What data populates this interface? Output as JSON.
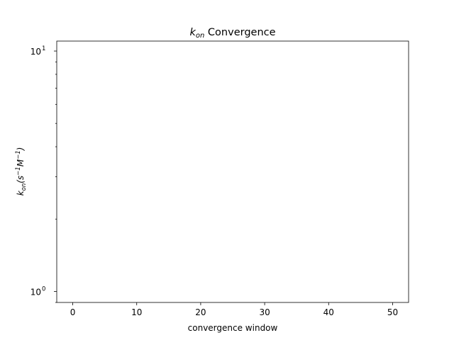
{
  "chart_data": {
    "type": "line",
    "title": {
      "k": "k",
      "sub": "on",
      "rest": " Convergence"
    },
    "xlabel": "convergence window",
    "ylabel": {
      "k": "k",
      "sub": "on",
      "open": "(s",
      "exp1": "−1",
      "m": "M",
      "exp2": "−1",
      "close": ")"
    },
    "xlim": [
      -2.5,
      52.5
    ],
    "ylim": [
      0.9,
      11
    ],
    "yscale": "log",
    "grid": false,
    "x_ticks": [
      0,
      10,
      20,
      30,
      40,
      50
    ],
    "x_tick_labels": [
      "0",
      "10",
      "20",
      "30",
      "40",
      "50"
    ],
    "y_major_ticks": [
      1,
      10
    ],
    "y_tick_labels": [
      {
        "base": "10",
        "exp": "0"
      },
      {
        "base": "10",
        "exp": "1"
      }
    ],
    "y_minor_ticks": [
      0.9,
      2,
      3,
      4,
      5,
      6,
      7,
      8,
      9
    ],
    "series": [],
    "colors": {
      "axes": "#000000",
      "background": "#ffffff"
    }
  }
}
